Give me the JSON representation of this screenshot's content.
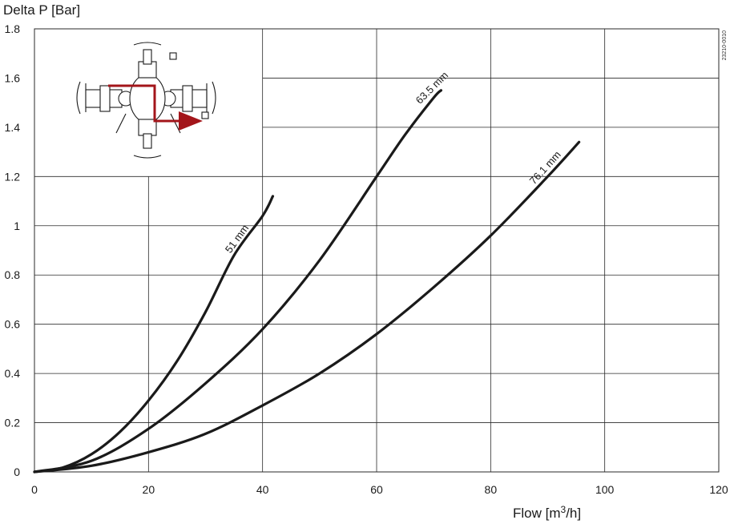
{
  "chart_data": {
    "type": "line",
    "title": "",
    "ylabel": "Delta P [Bar]",
    "xlabel": "Flow  [m³/h]",
    "xlim": [
      0,
      120
    ],
    "ylim": [
      0,
      1.8
    ],
    "x_ticks": [
      "0",
      "20",
      "40",
      "60",
      "80",
      "100",
      "120"
    ],
    "y_ticks": [
      "0",
      "0.2",
      "0.4",
      "0.6",
      "0.8",
      "1",
      "1.2",
      "1.4",
      "1.6",
      "1.8"
    ],
    "grid": true,
    "legend": "none",
    "doc_id": "23210-0010",
    "series": [
      {
        "name": "51 mm",
        "x": [
          0,
          5,
          10,
          15,
          20,
          25,
          30,
          35,
          40,
          41.8
        ],
        "y": [
          0,
          0.018,
          0.072,
          0.163,
          0.29,
          0.45,
          0.65,
          0.88,
          1.04,
          1.12
        ]
      },
      {
        "name": "63.5 mm",
        "x": [
          0,
          10,
          20,
          30,
          40,
          50,
          60,
          65,
          70,
          71.3
        ],
        "y": [
          0,
          0.045,
          0.175,
          0.36,
          0.58,
          0.86,
          1.2,
          1.37,
          1.52,
          1.55
        ]
      },
      {
        "name": "76.1 mm",
        "x": [
          0,
          10,
          20,
          30,
          40,
          50,
          60,
          70,
          80,
          90,
          95.5
        ],
        "y": [
          0,
          0.025,
          0.08,
          0.155,
          0.27,
          0.4,
          0.56,
          0.75,
          0.96,
          1.2,
          1.34
        ]
      }
    ],
    "colors": {
      "line": "#1a1a1a",
      "grid": "#2a2a2a",
      "arrow": "#a3151a",
      "background": "#ffffff"
    },
    "inset_image": "valve-flow-diagram"
  }
}
